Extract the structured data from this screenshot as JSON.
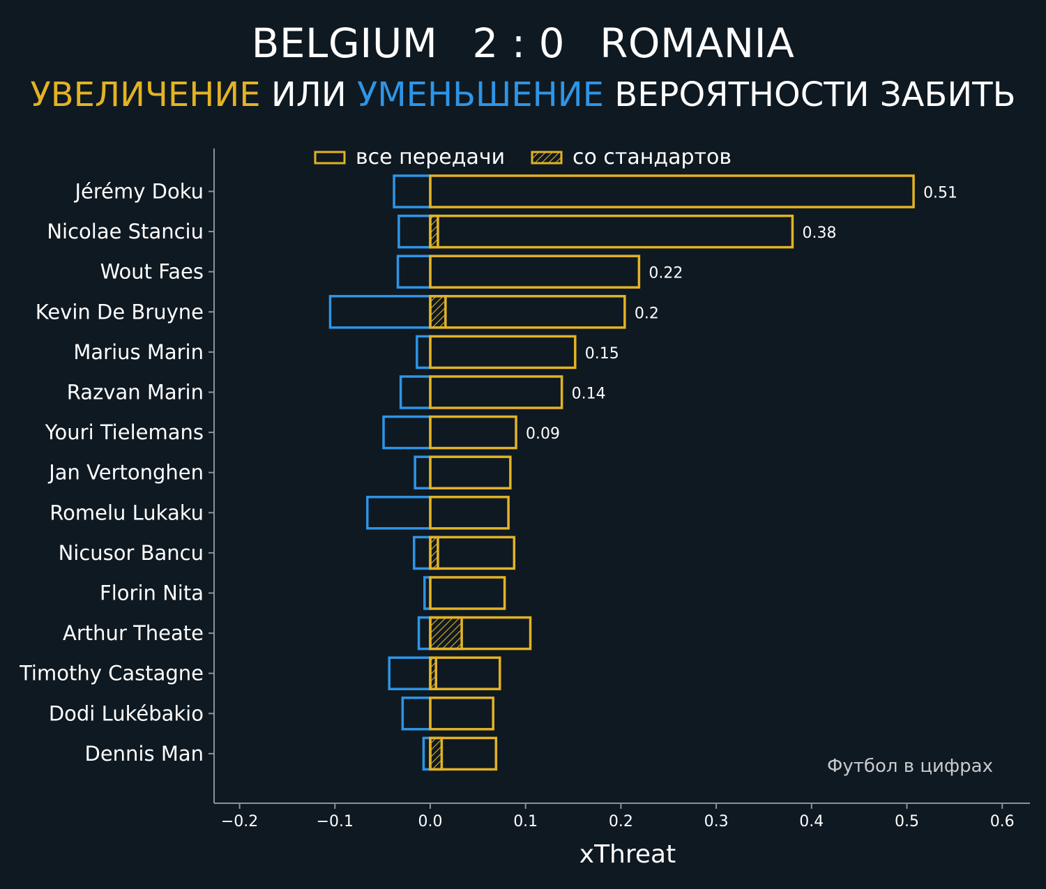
{
  "header": {
    "home_team": "BELGIUM",
    "score": "2 : 0",
    "away_team": "ROMANIA",
    "subtitle_increase": "УВЕЛИЧЕНИЕ",
    "subtitle_or": "ИЛИ",
    "subtitle_decrease": "УМЕНЬШЕНИЕ",
    "subtitle_rest": "ВЕРОЯТНОСТИ ЗАБИТЬ"
  },
  "colors": {
    "background": "#0f1921",
    "increase": "#e3b325",
    "decrease": "#2e95e6",
    "axis": "#8a9399",
    "credit": "#c8cbce"
  },
  "credit": "Футбол в цифрах",
  "chart_data": {
    "type": "bar",
    "orientation": "horizontal",
    "xlabel": "xThreat",
    "ylabel": "",
    "xlim": [
      -0.225,
      0.635
    ],
    "xticks": [
      -0.2,
      -0.1,
      0.0,
      0.1,
      0.2,
      0.3,
      0.4,
      0.5,
      0.6
    ],
    "xtick_labels": [
      "−0.2",
      "−0.1",
      "0.0",
      "0.1",
      "0.2",
      "0.3",
      "0.4",
      "0.5",
      "0.6"
    ],
    "legend": {
      "position": "top-left",
      "entries": [
        "все передачи",
        "со стандартов"
      ]
    },
    "categories": [
      "Jérémy Doku",
      "Nicolae Stanciu",
      "Wout Faes",
      "Kevin De Bruyne",
      "Marius Marin",
      "Razvan Marin",
      "Youri Tielemans",
      "Jan Vertonghen",
      "Romelu Lukaku",
      "Nicusor Bancu",
      "Florin Nita",
      "Arthur Theate",
      "Timothy Castagne",
      "Dodi Lukébakio",
      "Dennis Man"
    ],
    "series": [
      {
        "name": "все передачи (увеличение)",
        "values": [
          0.507,
          0.38,
          0.219,
          0.204,
          0.152,
          0.138,
          0.09,
          0.084,
          0.082,
          0.088,
          0.078,
          0.105,
          0.073,
          0.066,
          0.069
        ]
      },
      {
        "name": "уменьшение",
        "values": [
          -0.038,
          -0.033,
          -0.034,
          -0.105,
          -0.014,
          -0.031,
          -0.049,
          -0.016,
          -0.066,
          -0.017,
          -0.006,
          -0.012,
          -0.043,
          -0.029,
          -0.007
        ]
      },
      {
        "name": "со стандартов",
        "values": [
          0,
          0.008,
          0,
          0.016,
          0,
          0,
          0,
          0,
          0,
          0.008,
          0,
          0.033,
          0.006,
          0,
          0.012
        ]
      }
    ],
    "data_labels": [
      "0.51",
      "0.38",
      "0.22",
      "0.2",
      "0.15",
      "0.14",
      "0.09",
      "",
      "",
      "",
      "",
      "",
      "",
      "",
      ""
    ]
  }
}
